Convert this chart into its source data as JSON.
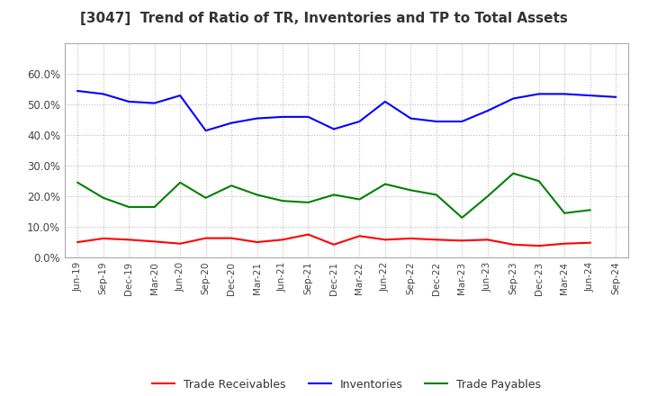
{
  "title": "[3047]  Trend of Ratio of TR, Inventories and TP to Total Assets",
  "x_labels": [
    "Jun-19",
    "Sep-19",
    "Dec-19",
    "Mar-20",
    "Jun-20",
    "Sep-20",
    "Dec-20",
    "Mar-21",
    "Jun-21",
    "Sep-21",
    "Dec-21",
    "Mar-22",
    "Jun-22",
    "Sep-22",
    "Dec-22",
    "Mar-23",
    "Jun-23",
    "Sep-23",
    "Dec-23",
    "Mar-24",
    "Jun-24",
    "Sep-24"
  ],
  "trade_receivables": [
    0.05,
    0.062,
    0.058,
    0.052,
    0.045,
    0.063,
    0.063,
    0.05,
    0.058,
    0.075,
    0.042,
    0.07,
    0.058,
    0.062,
    0.058,
    0.055,
    0.058,
    0.042,
    0.038,
    0.045,
    0.048,
    null
  ],
  "inventories": [
    0.545,
    0.535,
    0.51,
    0.505,
    0.53,
    0.415,
    0.44,
    0.455,
    0.46,
    0.46,
    0.42,
    0.445,
    0.51,
    0.455,
    0.445,
    0.445,
    0.48,
    0.52,
    0.535,
    0.535,
    0.53,
    0.525
  ],
  "trade_payables": [
    0.245,
    0.195,
    0.165,
    0.165,
    0.245,
    0.195,
    0.235,
    0.205,
    0.185,
    0.18,
    0.205,
    0.19,
    0.24,
    0.22,
    0.205,
    0.13,
    0.2,
    0.275,
    0.25,
    0.145,
    0.155,
    null
  ],
  "tr_color": "#ff0000",
  "inv_color": "#0000ff",
  "tp_color": "#008000",
  "legend_labels": [
    "Trade Receivables",
    "Inventories",
    "Trade Payables"
  ],
  "ylim": [
    0.0,
    0.7
  ],
  "yticks": [
    0.0,
    0.1,
    0.2,
    0.3,
    0.4,
    0.5,
    0.6
  ],
  "background_color": "#ffffff",
  "grid_color": "#aaaaaa",
  "title_color": "#333333"
}
